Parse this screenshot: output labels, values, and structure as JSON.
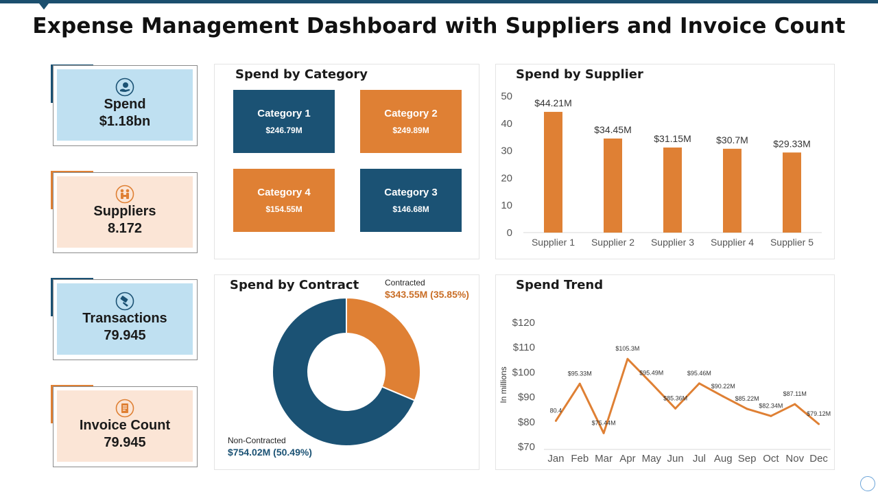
{
  "title": "Expense Management Dashboard with Suppliers and Invoice Count",
  "colors": {
    "navy": "#1b5274",
    "orange": "#df8034",
    "light_blue": "#bfe0f1",
    "peach": "#fbe5d6"
  },
  "kpis": [
    {
      "label": "Spend",
      "value": "$1.18bn",
      "icon": "hand-dollar-icon"
    },
    {
      "label": "Suppliers",
      "value": "8.172",
      "icon": "supplier-people-icon"
    },
    {
      "label": "Transactions",
      "value": "79.945",
      "icon": "card-swipe-icon"
    },
    {
      "label": "Invoice Count",
      "value": "79.945",
      "icon": "invoice-icon"
    }
  ],
  "spend_by_category": {
    "title": "Spend by Category",
    "items": [
      {
        "name": "Category 1",
        "value": "$246.79M"
      },
      {
        "name": "Category 2",
        "value": "$249.89M"
      },
      {
        "name": "Category 4",
        "value": "$154.55M"
      },
      {
        "name": "Category 3",
        "value": "$146.68M"
      }
    ]
  },
  "spend_by_contract": {
    "title": "Spend by Contract",
    "contracted": {
      "label": "Contracted",
      "value": "$343.55M (35.85%)"
    },
    "non_contracted": {
      "label": "Non-Contracted",
      "value": "$754.02M (50.49%)"
    }
  },
  "chart_data": [
    {
      "type": "bar",
      "title": "Spend by Supplier",
      "categories": [
        "Supplier 1",
        "Supplier 2",
        "Supplier 3",
        "Supplier 4",
        "Supplier 5"
      ],
      "values": [
        44.21,
        34.45,
        31.15,
        30.7,
        29.33
      ],
      "data_labels": [
        "$44.21M",
        "$34.45M",
        "$31.15M",
        "$30.7M",
        "$29.33M"
      ],
      "yticks": [
        "0",
        "10",
        "20",
        "30",
        "40",
        "50"
      ],
      "ylim": [
        0,
        50
      ],
      "xlabel": "",
      "ylabel": ""
    },
    {
      "type": "pie",
      "title": "Spend by Contract",
      "donut": true,
      "slices": [
        {
          "name": "Contracted",
          "value": 343.55
        },
        {
          "name": "Non-Contracted",
          "value": 754.02
        }
      ]
    },
    {
      "type": "line",
      "title": "Spend Trend",
      "ylabel": "In millions",
      "x": [
        "Jan",
        "Feb",
        "Mar",
        "Apr",
        "May",
        "Jun",
        "Jul",
        "Aug",
        "Sep",
        "Oct",
        "Nov",
        "Dec"
      ],
      "values": [
        80.4,
        95.33,
        75.44,
        105.3,
        95.49,
        85.36,
        95.46,
        90.22,
        85.22,
        82.34,
        87.11,
        79.12
      ],
      "data_labels": [
        "80.4",
        "$95.33M",
        "$75.44M",
        "$105.3M",
        "$95.49M",
        "$85.36M",
        "$95.46M",
        "$90.22M",
        "$85.22M",
        "$82.34M",
        "$87.11M",
        "$79.12M"
      ],
      "yticks": [
        "$70",
        "$80",
        "$90",
        "$100",
        "$110",
        "$120"
      ],
      "ylim": [
        70,
        120
      ]
    }
  ]
}
